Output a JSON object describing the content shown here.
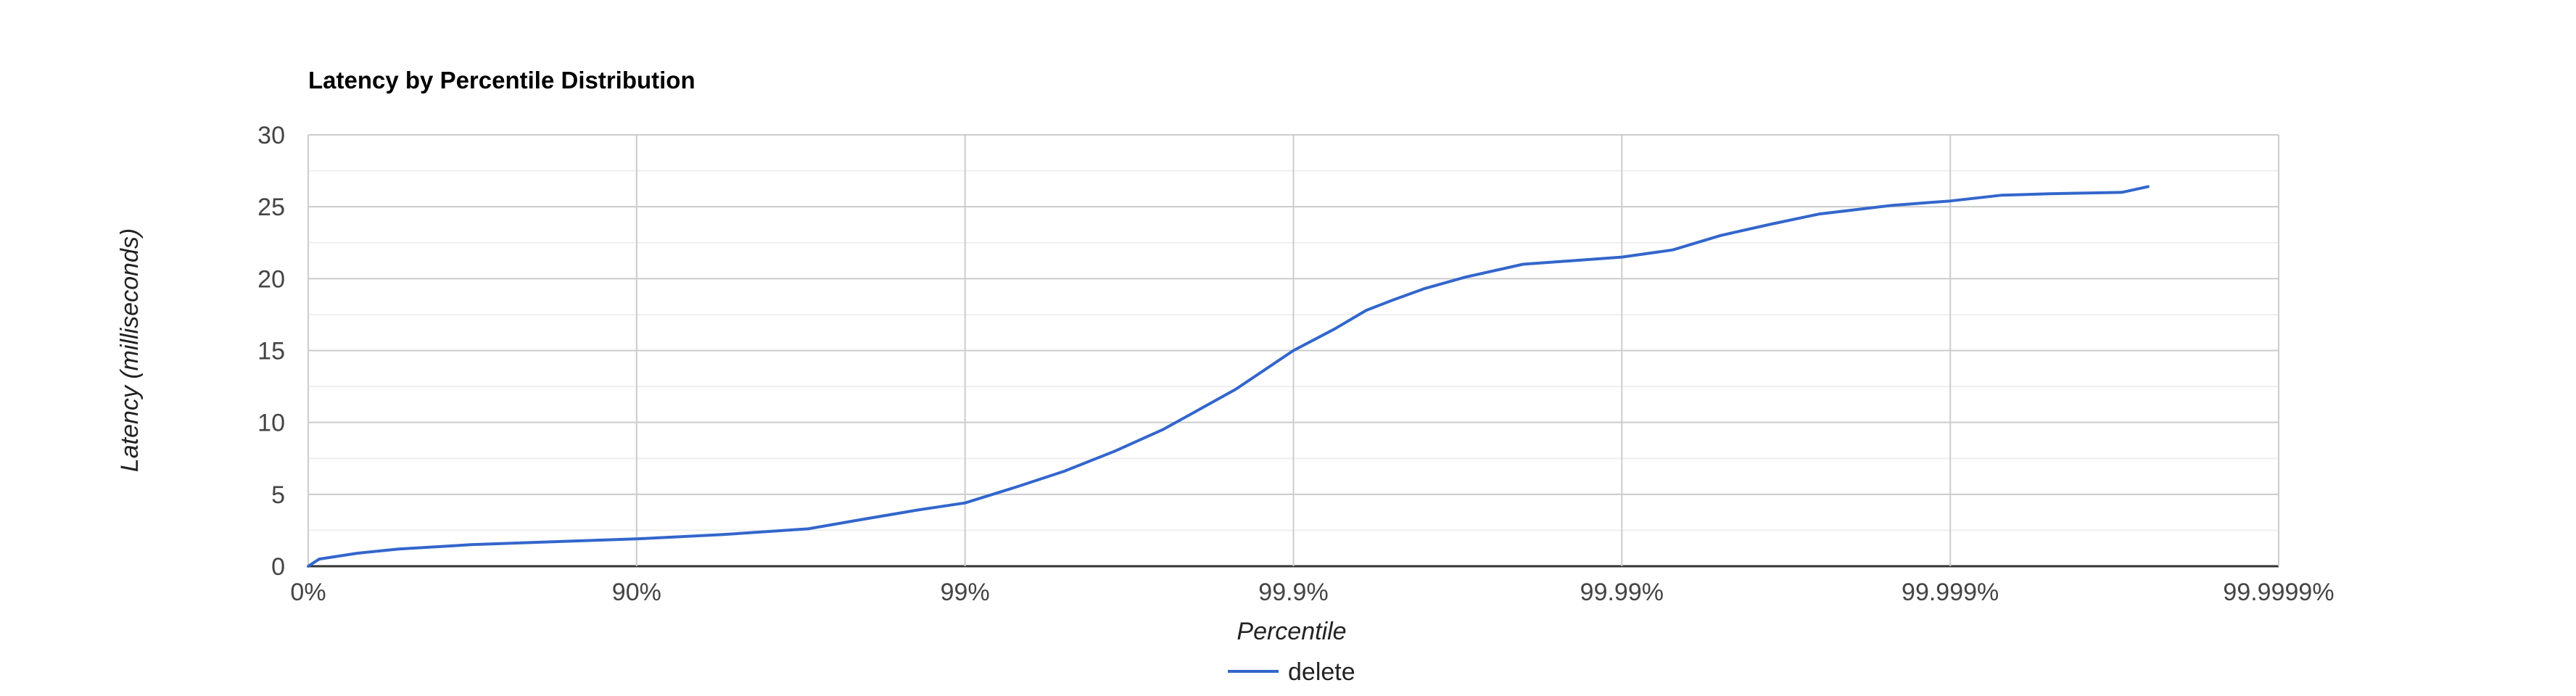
{
  "chart_data": {
    "type": "line",
    "title": "Latency by Percentile Distribution",
    "xlabel": "Percentile",
    "ylabel": "Latency (milliseconds)",
    "x_scale": "log-percentile",
    "x_ticks": [
      "0%",
      "90%",
      "99%",
      "99.9%",
      "99.99%",
      "99.999%",
      "99.9999%"
    ],
    "y_ticks": [
      "0",
      "5",
      "10",
      "15",
      "20",
      "25",
      "30"
    ],
    "ylim": [
      0,
      30
    ],
    "grid": true,
    "legend_position": "bottom",
    "series": [
      {
        "name": "delete",
        "color": "#3366cc",
        "points": [
          {
            "p": "0%",
            "y": 0
          },
          {
            "p": "7.5%",
            "y": 0.5
          },
          {
            "p": "29%",
            "y": 0.9
          },
          {
            "p": "47%",
            "y": 1.2
          },
          {
            "p": "68%",
            "y": 1.5
          },
          {
            "p": "82%",
            "y": 1.7
          },
          {
            "p": "90%",
            "y": 1.9
          },
          {
            "p": "94.5%",
            "y": 2.2
          },
          {
            "p": "97%",
            "y": 2.6
          },
          {
            "p": "98%",
            "y": 3.3
          },
          {
            "p": "98.6%",
            "y": 3.9
          },
          {
            "p": "99%",
            "y": 4.4
          },
          {
            "p": "99.3%",
            "y": 5.5
          },
          {
            "p": "99.5%",
            "y": 6.6
          },
          {
            "p": "99.65%",
            "y": 8
          },
          {
            "p": "99.75%",
            "y": 9.5
          },
          {
            "p": "99.81%",
            "y": 11
          },
          {
            "p": "99.85%",
            "y": 12.3
          },
          {
            "p": "99.9%",
            "y": 15
          },
          {
            "p": "99.925%",
            "y": 16.5
          },
          {
            "p": "99.94%",
            "y": 17.8
          },
          {
            "p": "99.95%",
            "y": 18.5
          },
          {
            "p": "99.96%",
            "y": 19.3
          },
          {
            "p": "99.97%",
            "y": 20.1
          },
          {
            "p": "99.98%",
            "y": 21
          },
          {
            "p": "99.99%",
            "y": 21.5
          },
          {
            "p": "99.993%",
            "y": 22
          },
          {
            "p": "99.995%",
            "y": 23
          },
          {
            "p": "99.9965%",
            "y": 23.8
          },
          {
            "p": "99.9975%",
            "y": 24.5
          },
          {
            "p": "99.9985%",
            "y": 25.1
          },
          {
            "p": "99.999%",
            "y": 25.4
          },
          {
            "p": "99.9993%",
            "y": 25.8
          },
          {
            "p": "99.9995%",
            "y": 25.9
          },
          {
            "p": "99.9997%",
            "y": 26
          },
          {
            "p": "99.99975%",
            "y": 26.4
          }
        ]
      }
    ]
  }
}
